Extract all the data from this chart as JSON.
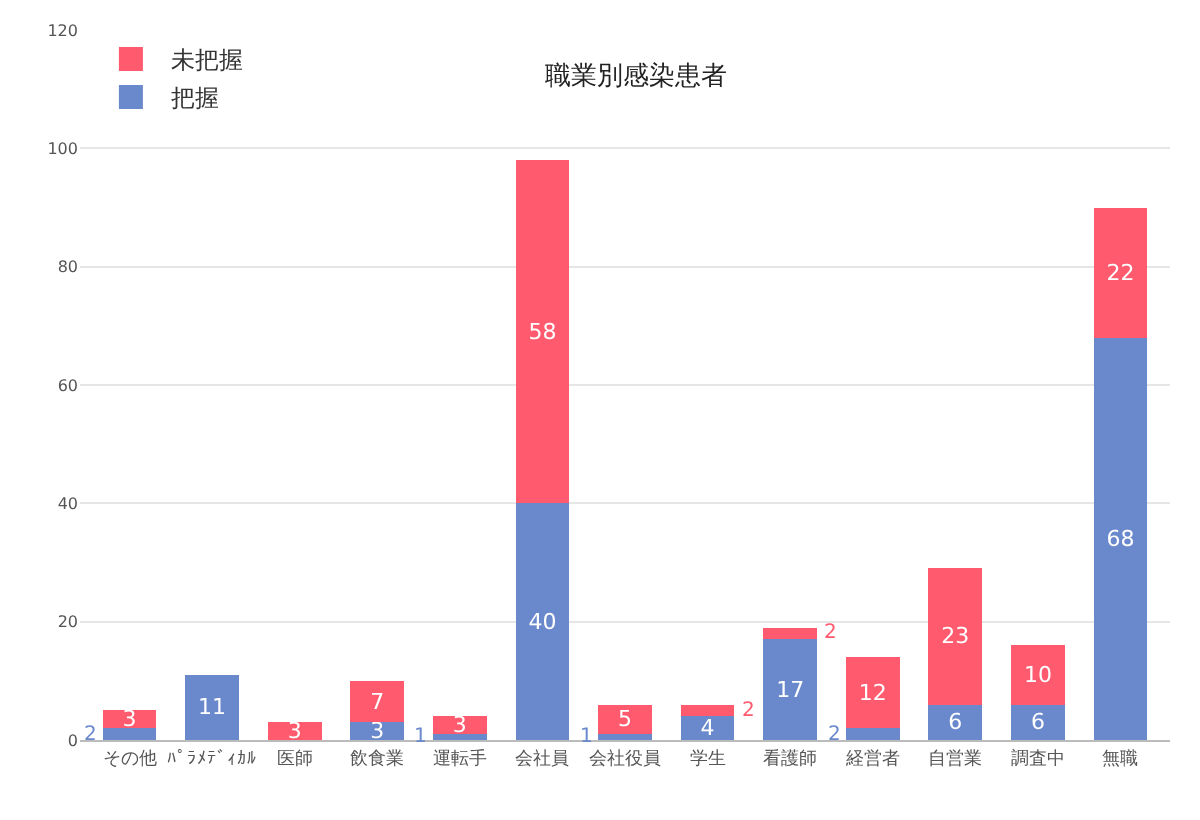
{
  "chart_data": {
    "type": "bar",
    "title": "職業別感染患者",
    "stacked": true,
    "categories": [
      "その他",
      "ﾊﾟﾗﾒﾃﾞｨｶﾙ",
      "医師",
      "飲食業",
      "運転手",
      "会社員",
      "会社役員",
      "学生",
      "看護師",
      "経営者",
      "自営業",
      "調査中",
      "無職"
    ],
    "series": [
      {
        "name": "把握",
        "color": "#6a89cc",
        "values": [
          2,
          11,
          0,
          3,
          1,
          40,
          1,
          4,
          17,
          2,
          6,
          6,
          68
        ],
        "value_labels": [
          "2",
          "11",
          null,
          "3",
          "1",
          "40",
          "1",
          "4",
          "17",
          "2",
          "6",
          "6",
          "68"
        ]
      },
      {
        "name": "未把握",
        "color": "#ff5a6e",
        "values": [
          3,
          0,
          3,
          7,
          3,
          58,
          5,
          2,
          2,
          12,
          23,
          10,
          22
        ],
        "value_labels": [
          "3",
          null,
          "3",
          "7",
          "3",
          "58",
          "5",
          "2",
          "2",
          "12",
          "23",
          "10",
          "22"
        ]
      }
    ],
    "ylim": [
      0,
      120
    ],
    "yticks": [
      0,
      20,
      40,
      60,
      80,
      100,
      120
    ],
    "grid": "y",
    "legend": "top left"
  }
}
